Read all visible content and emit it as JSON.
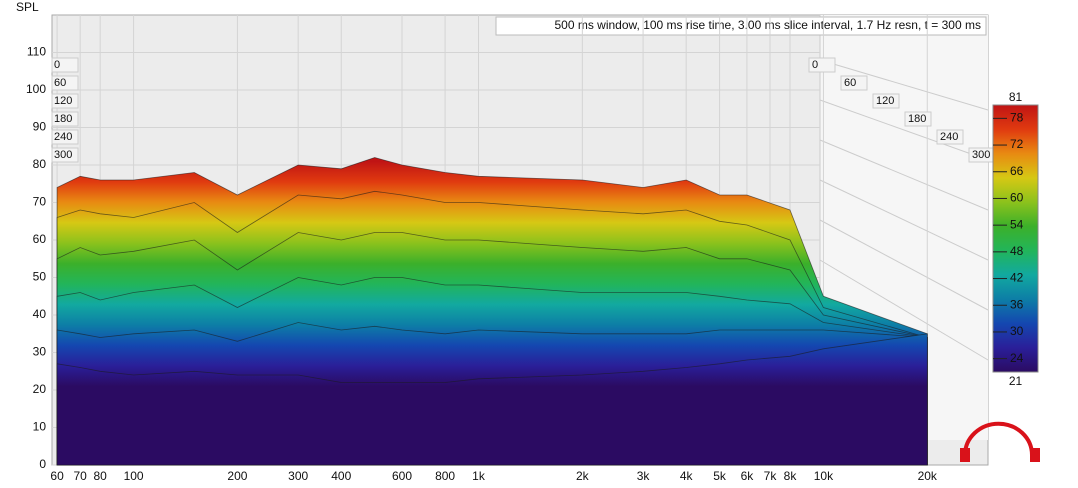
{
  "chart_data": {
    "type": "waterfall",
    "title": "500 ms window, 100 ms rise time, 3.00 ms slice interval, 1.7 Hz resn, t = 300 ms",
    "ylabel": "SPL",
    "xlim": [
      58,
      30000
    ],
    "log_x": true,
    "xticks": [
      60,
      70,
      80,
      100,
      200,
      300,
      400,
      600,
      800,
      {
        "value": 1000,
        "label": "1k"
      },
      {
        "value": 2000,
        "label": "2k"
      },
      {
        "value": 3000,
        "label": "3k"
      },
      {
        "value": 4000,
        "label": "4k"
      },
      {
        "value": 5000,
        "label": "5k"
      },
      {
        "value": 6000,
        "label": "6k"
      },
      {
        "value": 7000,
        "label": "7k"
      },
      {
        "value": 8000,
        "label": "8k"
      },
      {
        "value": 10000,
        "label": "10k"
      },
      {
        "value": 20000,
        "label": "20k"
      }
    ],
    "ylim": [
      0,
      120
    ],
    "yticks": [
      0,
      10,
      20,
      30,
      40,
      50,
      60,
      70,
      80,
      90,
      100,
      110
    ],
    "zticks": [
      0,
      60,
      120,
      180,
      240,
      300
    ],
    "grid": true,
    "x": [
      60,
      70,
      80,
      100,
      150,
      200,
      300,
      400,
      500,
      600,
      800,
      1000,
      2000,
      3000,
      4000,
      5000,
      6000,
      8000,
      10000,
      20000
    ],
    "series": [
      {
        "values": [
          74,
          77,
          76,
          76,
          78,
          72,
          80,
          79,
          82,
          80,
          78,
          77,
          76,
          74,
          76,
          72,
          72,
          68,
          45,
          35
        ]
      },
      {
        "values": [
          66,
          68,
          67,
          66,
          70,
          62,
          72,
          71,
          73,
          72,
          70,
          70,
          68,
          67,
          68,
          65,
          64,
          60,
          42,
          34
        ]
      },
      {
        "values": [
          55,
          58,
          56,
          57,
          60,
          52,
          62,
          60,
          62,
          62,
          60,
          60,
          58,
          57,
          58,
          55,
          55,
          52,
          40,
          34
        ]
      },
      {
        "values": [
          45,
          46,
          44,
          46,
          48,
          42,
          50,
          48,
          50,
          50,
          48,
          48,
          46,
          46,
          46,
          45,
          44,
          43,
          38,
          34
        ]
      },
      {
        "values": [
          36,
          35,
          34,
          35,
          36,
          33,
          38,
          36,
          37,
          36,
          35,
          36,
          35,
          35,
          35,
          36,
          36,
          36,
          36,
          34
        ]
      },
      {
        "values": [
          27,
          26,
          25,
          24,
          25,
          24,
          24,
          22,
          22,
          22,
          22,
          23,
          24,
          25,
          26,
          27,
          28,
          29,
          31,
          35
        ]
      }
    ],
    "colorbar": {
      "range": [
        21,
        81
      ],
      "ticks": [
        24,
        30,
        36,
        42,
        48,
        54,
        60,
        66,
        72,
        78
      ],
      "colors": [
        "#2b0b62",
        "#2a1f99",
        "#1447b0",
        "#0d7ea6",
        "#12a9a0",
        "#22b55a",
        "#3cb02a",
        "#8cc21c",
        "#d6c814",
        "#e88a12",
        "#e03a10",
        "#c01414"
      ]
    }
  }
}
